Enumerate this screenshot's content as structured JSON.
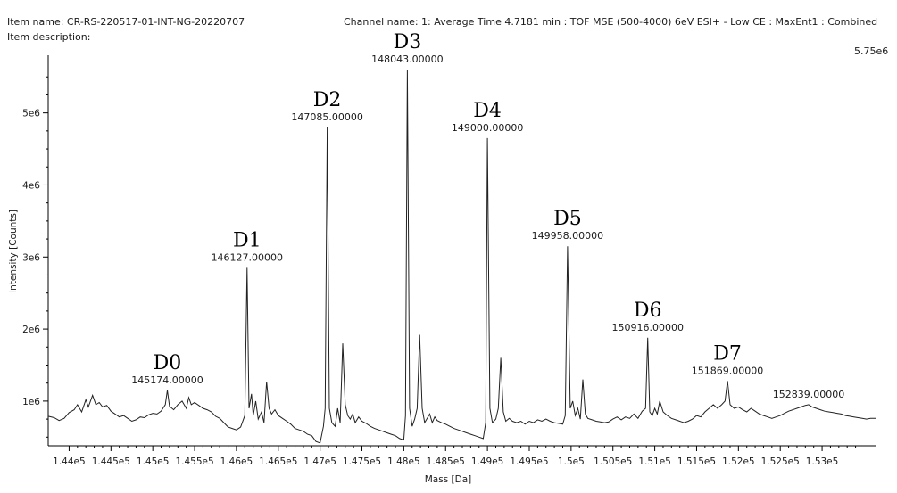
{
  "header": {
    "item_name": "Item name: CR-RS-220517-01-INT-NG-20220707",
    "item_description": "Item description:",
    "channel": "Channel name: 1: Average Time 4.7181 min : TOF MSE (500-4000) 6eV ESI+ - Low CE : MaxEnt1 : Combined",
    "max_intensity": "5.75e6"
  },
  "chart_data": {
    "type": "line",
    "title": "",
    "xlabel": "Mass [Da]",
    "ylabel": "Intensity [Counts]",
    "xlim": [
      143750,
      153650
    ],
    "ylim": [
      380000,
      5800000
    ],
    "x_ticks": [
      {
        "value": 144000,
        "label": "1.44e5"
      },
      {
        "value": 144500,
        "label": "1.445e5"
      },
      {
        "value": 145000,
        "label": "1.45e5"
      },
      {
        "value": 145500,
        "label": "1.455e5"
      },
      {
        "value": 146000,
        "label": "1.46e5"
      },
      {
        "value": 146500,
        "label": "1.465e5"
      },
      {
        "value": 147000,
        "label": "1.47e5"
      },
      {
        "value": 147500,
        "label": "1.475e5"
      },
      {
        "value": 148000,
        "label": "1.48e5"
      },
      {
        "value": 148500,
        "label": "1.485e5"
      },
      {
        "value": 149000,
        "label": "1.49e5"
      },
      {
        "value": 149500,
        "label": "1.495e5"
      },
      {
        "value": 150000,
        "label": "1.5e5"
      },
      {
        "value": 150500,
        "label": "1.505e5"
      },
      {
        "value": 151000,
        "label": "1.51e5"
      },
      {
        "value": 151500,
        "label": "1.515e5"
      },
      {
        "value": 152000,
        "label": "1.52e5"
      },
      {
        "value": 152500,
        "label": "1.525e5"
      },
      {
        "value": 153000,
        "label": "1.53e5"
      }
    ],
    "y_ticks": [
      {
        "value": 1000000,
        "label": "1e6"
      },
      {
        "value": 2000000,
        "label": "2e6"
      },
      {
        "value": 3000000,
        "label": "3e6"
      },
      {
        "value": 4000000,
        "label": "4e6"
      },
      {
        "value": 5000000,
        "label": "5e6"
      }
    ],
    "peaks": [
      {
        "name": "D0",
        "mass": 145174,
        "label": "145174.00000",
        "intensity": 1150000
      },
      {
        "name": "D1",
        "mass": 146127,
        "label": "146127.00000",
        "intensity": 2850000
      },
      {
        "name": "D2",
        "mass": 147085,
        "label": "147085.00000",
        "intensity": 4800000
      },
      {
        "name": "D3",
        "mass": 148043,
        "label": "148043.00000",
        "intensity": 5600000
      },
      {
        "name": "D4",
        "mass": 149000,
        "label": "149000.00000",
        "intensity": 4650000
      },
      {
        "name": "D5",
        "mass": 149958,
        "label": "149958.00000",
        "intensity": 3150000
      },
      {
        "name": "D6",
        "mass": 150916,
        "label": "150916.00000",
        "intensity": 1880000
      },
      {
        "name": "D7",
        "mass": 151869,
        "label": "151869.00000",
        "intensity": 1280000
      },
      {
        "name": "",
        "mass": 152839,
        "label": "152839.00000",
        "intensity": 950000
      }
    ],
    "spectrum": [
      [
        143750,
        790000
      ],
      [
        143820,
        770000
      ],
      [
        143880,
        730000
      ],
      [
        143940,
        760000
      ],
      [
        144000,
        840000
      ],
      [
        144060,
        880000
      ],
      [
        144100,
        950000
      ],
      [
        144150,
        850000
      ],
      [
        144200,
        1020000
      ],
      [
        144230,
        920000
      ],
      [
        144280,
        1080000
      ],
      [
        144320,
        950000
      ],
      [
        144360,
        980000
      ],
      [
        144400,
        920000
      ],
      [
        144450,
        940000
      ],
      [
        144500,
        860000
      ],
      [
        144550,
        820000
      ],
      [
        144600,
        780000
      ],
      [
        144650,
        800000
      ],
      [
        144700,
        760000
      ],
      [
        144750,
        720000
      ],
      [
        144800,
        740000
      ],
      [
        144850,
        780000
      ],
      [
        144900,
        770000
      ],
      [
        144950,
        810000
      ],
      [
        145000,
        830000
      ],
      [
        145050,
        820000
      ],
      [
        145100,
        860000
      ],
      [
        145150,
        950000
      ],
      [
        145174,
        1150000
      ],
      [
        145200,
        930000
      ],
      [
        145250,
        880000
      ],
      [
        145300,
        950000
      ],
      [
        145350,
        1000000
      ],
      [
        145400,
        900000
      ],
      [
        145430,
        1050000
      ],
      [
        145460,
        950000
      ],
      [
        145500,
        980000
      ],
      [
        145550,
        940000
      ],
      [
        145600,
        900000
      ],
      [
        145650,
        880000
      ],
      [
        145700,
        850000
      ],
      [
        145750,
        790000
      ],
      [
        145800,
        760000
      ],
      [
        145850,
        700000
      ],
      [
        145900,
        640000
      ],
      [
        145950,
        620000
      ],
      [
        146000,
        600000
      ],
      [
        146050,
        640000
      ],
      [
        146100,
        800000
      ],
      [
        146127,
        2850000
      ],
      [
        146150,
        900000
      ],
      [
        146180,
        1100000
      ],
      [
        146200,
        800000
      ],
      [
        146230,
        1000000
      ],
      [
        146260,
        750000
      ],
      [
        146300,
        850000
      ],
      [
        146330,
        700000
      ],
      [
        146360,
        1270000
      ],
      [
        146390,
        900000
      ],
      [
        146420,
        820000
      ],
      [
        146460,
        880000
      ],
      [
        146500,
        800000
      ],
      [
        146550,
        760000
      ],
      [
        146600,
        720000
      ],
      [
        146650,
        680000
      ],
      [
        146700,
        620000
      ],
      [
        146750,
        600000
      ],
      [
        146800,
        580000
      ],
      [
        146850,
        540000
      ],
      [
        146900,
        520000
      ],
      [
        146950,
        440000
      ],
      [
        147000,
        420000
      ],
      [
        147040,
        650000
      ],
      [
        147060,
        900000
      ],
      [
        147085,
        4800000
      ],
      [
        147110,
        900000
      ],
      [
        147140,
        700000
      ],
      [
        147180,
        650000
      ],
      [
        147210,
        900000
      ],
      [
        147240,
        700000
      ],
      [
        147270,
        1800000
      ],
      [
        147300,
        950000
      ],
      [
        147330,
        800000
      ],
      [
        147360,
        750000
      ],
      [
        147390,
        820000
      ],
      [
        147420,
        700000
      ],
      [
        147460,
        780000
      ],
      [
        147500,
        720000
      ],
      [
        147550,
        690000
      ],
      [
        147600,
        650000
      ],
      [
        147650,
        620000
      ],
      [
        147700,
        600000
      ],
      [
        147750,
        580000
      ],
      [
        147800,
        560000
      ],
      [
        147850,
        540000
      ],
      [
        147900,
        520000
      ],
      [
        147950,
        480000
      ],
      [
        148000,
        460000
      ],
      [
        148020,
        800000
      ],
      [
        148043,
        5600000
      ],
      [
        148070,
        900000
      ],
      [
        148100,
        650000
      ],
      [
        148130,
        750000
      ],
      [
        148160,
        900000
      ],
      [
        148190,
        1920000
      ],
      [
        148220,
        900000
      ],
      [
        148250,
        700000
      ],
      [
        148280,
        760000
      ],
      [
        148310,
        820000
      ],
      [
        148340,
        700000
      ],
      [
        148370,
        780000
      ],
      [
        148400,
        730000
      ],
      [
        148450,
        700000
      ],
      [
        148500,
        680000
      ],
      [
        148550,
        650000
      ],
      [
        148600,
        620000
      ],
      [
        148650,
        600000
      ],
      [
        148700,
        580000
      ],
      [
        148750,
        560000
      ],
      [
        148800,
        540000
      ],
      [
        148850,
        520000
      ],
      [
        148900,
        500000
      ],
      [
        148950,
        480000
      ],
      [
        148980,
        700000
      ],
      [
        149000,
        4650000
      ],
      [
        149030,
        900000
      ],
      [
        149060,
        700000
      ],
      [
        149100,
        750000
      ],
      [
        149130,
        900000
      ],
      [
        149160,
        1600000
      ],
      [
        149190,
        850000
      ],
      [
        149220,
        720000
      ],
      [
        149260,
        760000
      ],
      [
        149300,
        720000
      ],
      [
        149350,
        700000
      ],
      [
        149400,
        720000
      ],
      [
        149450,
        680000
      ],
      [
        149500,
        720000
      ],
      [
        149550,
        700000
      ],
      [
        149600,
        740000
      ],
      [
        149650,
        720000
      ],
      [
        149700,
        750000
      ],
      [
        149750,
        720000
      ],
      [
        149800,
        700000
      ],
      [
        149850,
        690000
      ],
      [
        149900,
        680000
      ],
      [
        149930,
        800000
      ],
      [
        149958,
        3150000
      ],
      [
        149990,
        900000
      ],
      [
        150020,
        1000000
      ],
      [
        150050,
        800000
      ],
      [
        150080,
        900000
      ],
      [
        150110,
        750000
      ],
      [
        150140,
        1300000
      ],
      [
        150170,
        820000
      ],
      [
        150200,
        760000
      ],
      [
        150250,
        740000
      ],
      [
        150300,
        720000
      ],
      [
        150350,
        710000
      ],
      [
        150400,
        700000
      ],
      [
        150450,
        710000
      ],
      [
        150500,
        750000
      ],
      [
        150550,
        780000
      ],
      [
        150600,
        740000
      ],
      [
        150650,
        780000
      ],
      [
        150700,
        760000
      ],
      [
        150750,
        820000
      ],
      [
        150800,
        760000
      ],
      [
        150850,
        860000
      ],
      [
        150890,
        900000
      ],
      [
        150916,
        1880000
      ],
      [
        150940,
        850000
      ],
      [
        150970,
        800000
      ],
      [
        151000,
        900000
      ],
      [
        151030,
        820000
      ],
      [
        151060,
        1000000
      ],
      [
        151100,
        850000
      ],
      [
        151150,
        800000
      ],
      [
        151200,
        760000
      ],
      [
        151250,
        740000
      ],
      [
        151300,
        720000
      ],
      [
        151350,
        700000
      ],
      [
        151400,
        720000
      ],
      [
        151450,
        750000
      ],
      [
        151500,
        800000
      ],
      [
        151550,
        780000
      ],
      [
        151600,
        850000
      ],
      [
        151650,
        900000
      ],
      [
        151700,
        950000
      ],
      [
        151750,
        900000
      ],
      [
        151800,
        950000
      ],
      [
        151840,
        1000000
      ],
      [
        151869,
        1280000
      ],
      [
        151900,
        950000
      ],
      [
        151950,
        900000
      ],
      [
        152000,
        920000
      ],
      [
        152050,
        880000
      ],
      [
        152100,
        850000
      ],
      [
        152150,
        900000
      ],
      [
        152200,
        860000
      ],
      [
        152250,
        820000
      ],
      [
        152300,
        800000
      ],
      [
        152350,
        780000
      ],
      [
        152400,
        760000
      ],
      [
        152450,
        780000
      ],
      [
        152500,
        800000
      ],
      [
        152550,
        830000
      ],
      [
        152600,
        860000
      ],
      [
        152650,
        880000
      ],
      [
        152700,
        900000
      ],
      [
        152750,
        920000
      ],
      [
        152800,
        940000
      ],
      [
        152839,
        950000
      ],
      [
        152880,
        920000
      ],
      [
        152930,
        900000
      ],
      [
        152980,
        880000
      ],
      [
        153030,
        860000
      ],
      [
        153080,
        850000
      ],
      [
        153130,
        840000
      ],
      [
        153180,
        830000
      ],
      [
        153230,
        820000
      ],
      [
        153280,
        800000
      ],
      [
        153330,
        790000
      ],
      [
        153380,
        780000
      ],
      [
        153430,
        770000
      ],
      [
        153480,
        760000
      ],
      [
        153530,
        750000
      ],
      [
        153580,
        760000
      ],
      [
        153650,
        760000
      ]
    ]
  }
}
